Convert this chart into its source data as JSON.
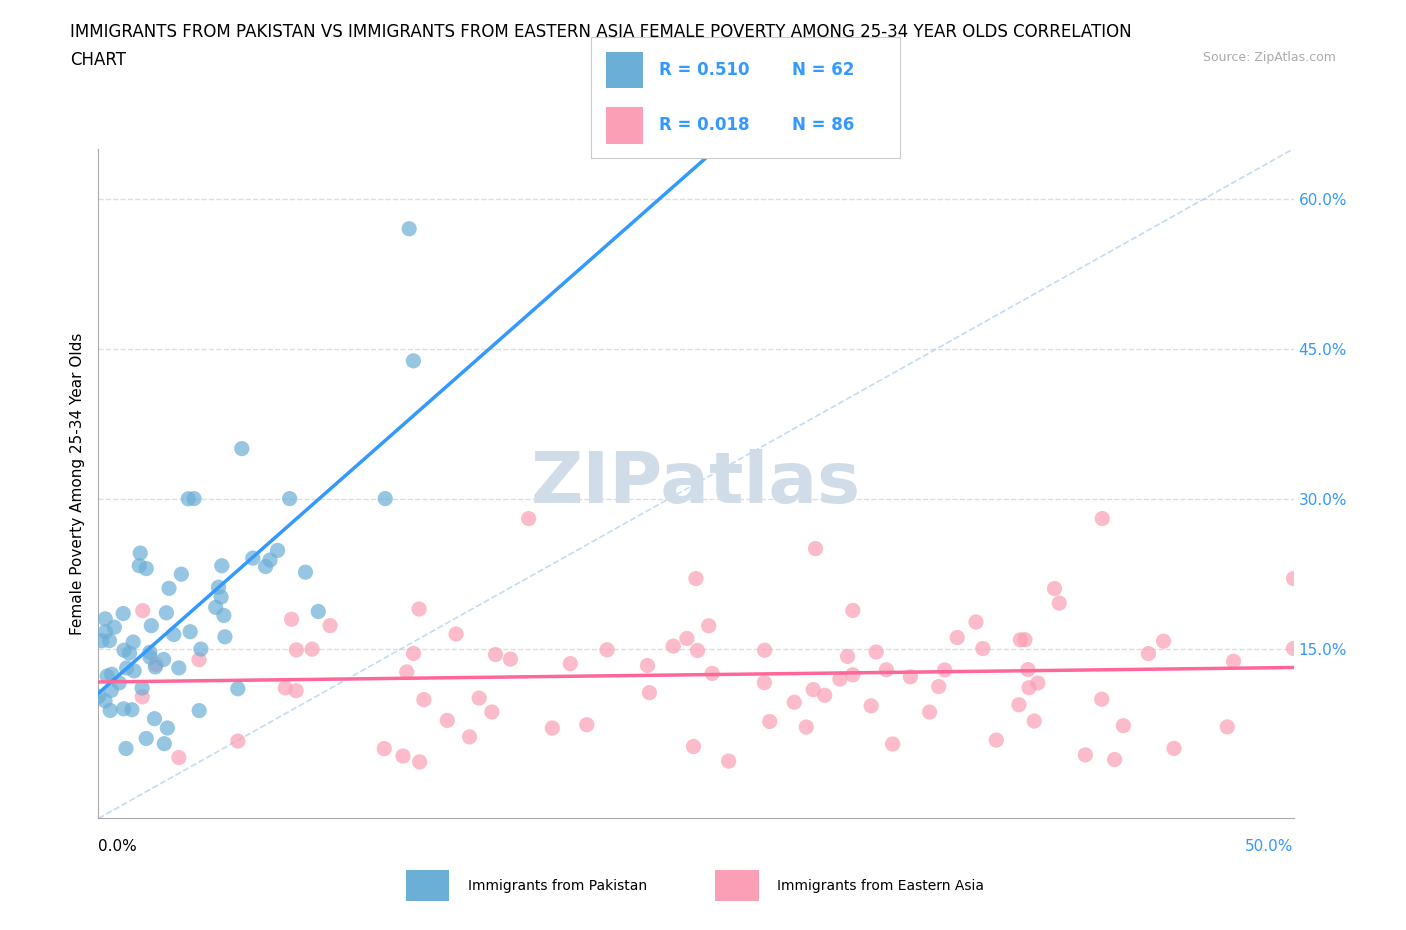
{
  "title_line1": "IMMIGRANTS FROM PAKISTAN VS IMMIGRANTS FROM EASTERN ASIA FEMALE POVERTY AMONG 25-34 YEAR OLDS CORRELATION",
  "title_line2": "CHART",
  "source_text": "Source: ZipAtlas.com",
  "ylabel": "Female Poverty Among 25-34 Year Olds",
  "xlim": [
    0.0,
    0.5
  ],
  "ylim": [
    -0.02,
    0.65
  ],
  "watermark": "ZIPatlas",
  "legend_blue_r": "R = 0.510",
  "legend_blue_n": "N = 62",
  "legend_pink_r": "R = 0.018",
  "legend_pink_n": "N = 86",
  "pakistan_color": "#6baed6",
  "eastern_asia_color": "#fa9fb5",
  "pakistan_label": "Immigrants from Pakistan",
  "eastern_asia_label": "Immigrants from Eastern Asia",
  "background_color": "#ffffff",
  "grid_color": "#dddddd",
  "title_fontsize": 12,
  "watermark_color": "#d0dde8",
  "legend_text_color": "#3399ff",
  "right_tick_color": "#3399ff",
  "right_tick_50_color": "#3399ff",
  "source_color": "#aaaaaa",
  "regression_blue_color": "#3399ff",
  "regression_pink_color": "#ff6699",
  "diag_color": "#aaccee",
  "ytick_values": [
    0.15,
    0.3,
    0.45,
    0.6
  ],
  "ytick_labels": [
    "15.0%",
    "30.0%",
    "45.0%",
    "60.0%"
  ]
}
